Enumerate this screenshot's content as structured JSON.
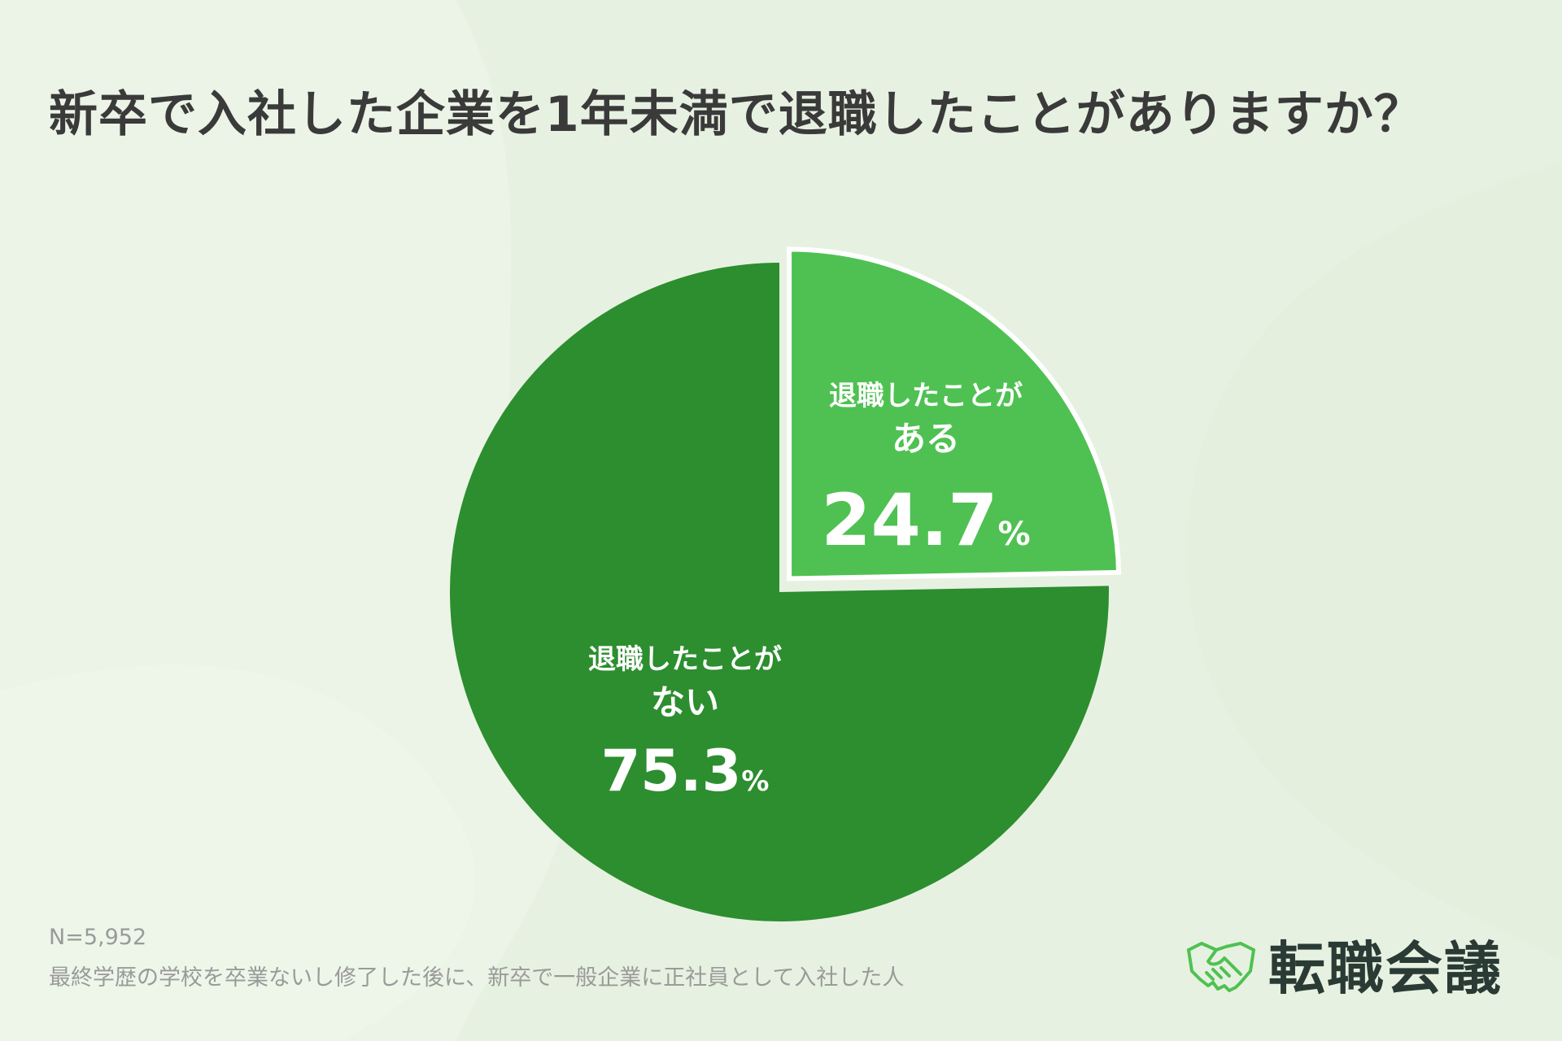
{
  "title": "新卒で入社した企業を1年未満で退職したことがありますか？",
  "colors": {
    "background": "#e7f1e1",
    "slice_yes": "#4fc152",
    "slice_no": "#2c8e2e",
    "brand_icon": "#4fc152",
    "brand_text": "#2a3a35"
  },
  "chart_data": {
    "type": "pie",
    "slices": [
      {
        "label_line1": "退職したことが",
        "label_line2": "ある",
        "value": 24.7,
        "value_text": "24.7",
        "unit": "%",
        "color": "#4fc152",
        "exploded": true
      },
      {
        "label_line1": "退職したことが",
        "label_line2": "ない",
        "value": 75.3,
        "value_text": "75.3",
        "unit": "%",
        "color": "#2c8e2e",
        "exploded": false
      }
    ],
    "start": "top, clockwise"
  },
  "footnote": {
    "n": "N=5,952",
    "population": "最終学歴の学校を卒業ないし修了した後に、新卒で一般企業に正社員として入社した人"
  },
  "brand": {
    "name": "転職会議",
    "icon": "handshake-icon"
  }
}
